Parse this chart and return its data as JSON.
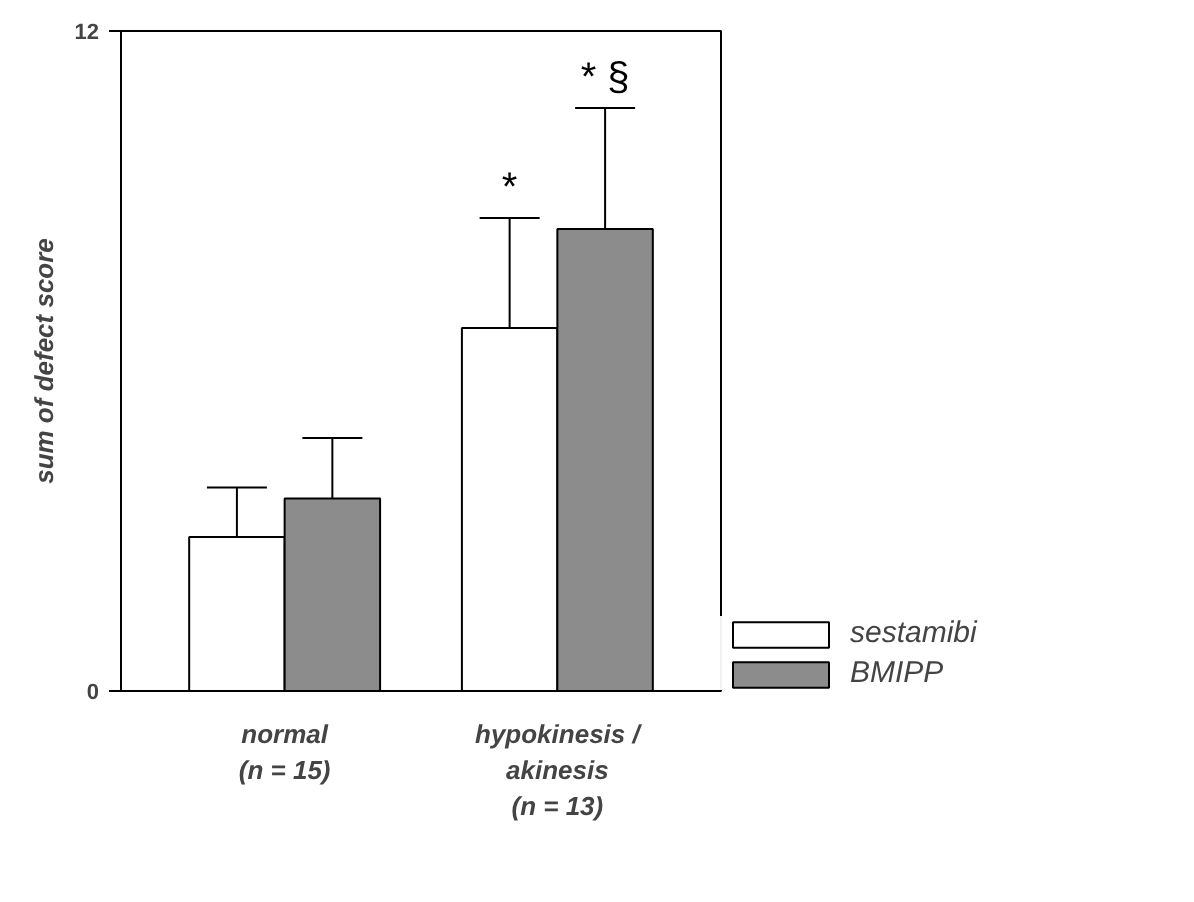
{
  "chart_data": {
    "type": "bar",
    "ylabel": "sum of defect score",
    "categories": [
      "normal\n(n = 15)",
      "hypokinesis /\nakinesis\n(n = 13)"
    ],
    "series": [
      {
        "name": "sestamibi",
        "color": "#ffffff",
        "values": [
          2.8,
          6.6
        ],
        "errors": [
          [
            2.8,
            3.7
          ],
          [
            6.6,
            8.6
          ]
        ]
      },
      {
        "name": "BMIPP",
        "color": "#8c8c8c",
        "values": [
          3.5,
          8.4
        ],
        "errors": [
          [
            3.5,
            4.6
          ],
          [
            8.4,
            10.6
          ]
        ]
      }
    ],
    "ylim": [
      0,
      12
    ],
    "yticks": [
      0,
      12
    ],
    "grid": false,
    "legend": "bottom right",
    "annotations": [
      "*",
      "* §"
    ]
  }
}
